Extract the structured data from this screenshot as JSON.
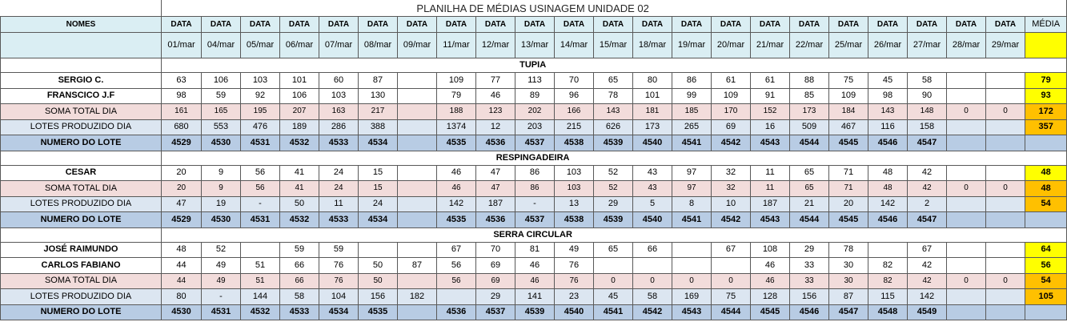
{
  "title": "PLANILHA DE MÉDIAS USINAGEM UNIDADE 02",
  "header": {
    "names_label": "NOMES",
    "date_label": "DATA",
    "media_label": "MÉDIA"
  },
  "dates": [
    "01/mar",
    "04/mar",
    "05/mar",
    "06/mar",
    "07/mar",
    "08/mar",
    "09/mar",
    "11/mar",
    "12/mar",
    "13/mar",
    "14/mar",
    "15/mar",
    "18/mar",
    "19/mar",
    "20/mar",
    "21/mar",
    "22/mar",
    "25/mar",
    "26/mar",
    "27/mar",
    "28/mar",
    "29/mar"
  ],
  "colors": {
    "header": "#daeef3",
    "media_header": "#ffff00",
    "media_name": "#ffff00",
    "media_total": "#ffc000",
    "soma": "#f2dcdb",
    "lotes": "#dce6f1",
    "numero": "#b8cce4"
  },
  "sections": [
    {
      "name": "TUPIA",
      "operators": [
        {
          "label": "SERGIO C.",
          "values": [
            63,
            106,
            103,
            101,
            60,
            87,
            "",
            109,
            77,
            113,
            70,
            65,
            80,
            86,
            61,
            61,
            88,
            75,
            45,
            58,
            "",
            ""
          ],
          "media": 79
        },
        {
          "label": "FRANSCICO J.F",
          "values": [
            98,
            59,
            92,
            106,
            103,
            130,
            "",
            79,
            46,
            89,
            96,
            78,
            101,
            99,
            109,
            91,
            85,
            109,
            98,
            90,
            "",
            ""
          ],
          "media": 93
        }
      ],
      "soma": {
        "label": "SOMA TOTAL DIA",
        "values": [
          161,
          165,
          195,
          207,
          163,
          217,
          "",
          188,
          123,
          202,
          166,
          143,
          181,
          185,
          170,
          152,
          173,
          184,
          143,
          148,
          0,
          0
        ],
        "media": 172
      },
      "lotes": {
        "label": "LOTES PRODUZIDO DIA",
        "values": [
          680,
          553,
          476,
          189,
          286,
          388,
          "",
          1374,
          12,
          203,
          215,
          626,
          173,
          265,
          69,
          16,
          509,
          467,
          116,
          158,
          "",
          ""
        ],
        "media": 357
      },
      "numero": {
        "label": "NUMERO DO LOTE",
        "values": [
          4529,
          4530,
          4531,
          4532,
          4533,
          4534,
          "",
          4535,
          4536,
          4537,
          4538,
          4539,
          4540,
          4541,
          4542,
          4543,
          4544,
          4545,
          4546,
          4547,
          "",
          ""
        ],
        "media": ""
      }
    },
    {
      "name": "RESPINGADEIRA",
      "operators": [
        {
          "label": "CESAR",
          "values": [
            20,
            9,
            56,
            41,
            24,
            15,
            "",
            46,
            47,
            86,
            103,
            52,
            43,
            97,
            32,
            11,
            65,
            71,
            48,
            42,
            "",
            ""
          ],
          "media": 48
        }
      ],
      "soma": {
        "label": "SOMA TOTAL DIA",
        "values": [
          20,
          9,
          56,
          41,
          24,
          15,
          "",
          46,
          47,
          86,
          103,
          52,
          43,
          97,
          32,
          11,
          65,
          71,
          48,
          42,
          0,
          0
        ],
        "media": 48
      },
      "lotes": {
        "label": "LOTES PRODUZIDO DIA",
        "values": [
          47,
          19,
          "-",
          50,
          11,
          24,
          "",
          142,
          187,
          "-",
          13,
          29,
          5,
          8,
          10,
          187,
          21,
          20,
          142,
          2,
          "",
          ""
        ],
        "media": 54
      },
      "numero": {
        "label": "NUMERO DO LOTE",
        "values": [
          4529,
          4530,
          4531,
          4532,
          4533,
          4534,
          "",
          4535,
          4536,
          4537,
          4538,
          4539,
          4540,
          4541,
          4542,
          4543,
          4544,
          4545,
          4546,
          4547,
          "",
          ""
        ],
        "media": ""
      }
    },
    {
      "name": "SERRA CIRCULAR",
      "operators": [
        {
          "label": "JOSÉ RAIMUNDO",
          "values": [
            48,
            52,
            "",
            59,
            59,
            "",
            "",
            67,
            70,
            81,
            49,
            65,
            66,
            "",
            67,
            108,
            29,
            78,
            "",
            67,
            "",
            ""
          ],
          "media": 64
        },
        {
          "label": "CARLOS FABIANO",
          "values": [
            44,
            49,
            51,
            66,
            76,
            50,
            87,
            56,
            69,
            46,
            76,
            "",
            "",
            "",
            "",
            46,
            33,
            30,
            82,
            42,
            "",
            ""
          ],
          "media": 56
        }
      ],
      "soma": {
        "label": "SOMA TOTAL DIA",
        "values": [
          44,
          49,
          51,
          66,
          76,
          50,
          "",
          56,
          69,
          46,
          76,
          0,
          0,
          0,
          0,
          46,
          33,
          30,
          82,
          42,
          0,
          0
        ],
        "media": 54
      },
      "lotes": {
        "label": "LOTES PRODUZIDO DIA",
        "values": [
          80,
          "-",
          144,
          58,
          104,
          156,
          182,
          "",
          29,
          141,
          23,
          45,
          58,
          169,
          75,
          128,
          156,
          87,
          115,
          142,
          "",
          ""
        ],
        "media": 105
      },
      "numero": {
        "label": "NUMERO DO LOTE",
        "values": [
          4530,
          4531,
          4532,
          4533,
          4534,
          4535,
          "",
          4536,
          4537,
          4539,
          4540,
          4541,
          4542,
          4543,
          4544,
          4545,
          4546,
          4547,
          4548,
          4549,
          "",
          ""
        ],
        "media": ""
      }
    }
  ]
}
